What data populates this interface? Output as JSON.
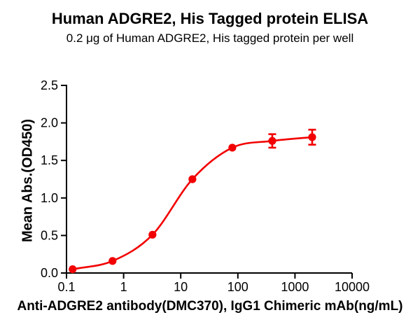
{
  "figure": {
    "title": "Human ADGRE2, His Tagged protein ELISA",
    "subtitle": "0.2 μg of Human ADGRE2, His tagged protein per well"
  },
  "colors": {
    "accent_red": "#f20000",
    "axis": "#000000",
    "text": "#000000",
    "background": "#ffffff"
  },
  "chart_data": {
    "type": "line",
    "title": "Human ADGRE2, His Tagged protein ELISA",
    "subtitle": "0.2 μg of Human ADGRE2, His tagged protein per well",
    "xlabel": "Anti-ADGRE2 antibody(DMC370), IgG1 Chimeric mAb(ng/mL)",
    "ylabel": "Mean Abs.(OD450)",
    "x_scale": "log10",
    "xlim": [
      0.1,
      10000
    ],
    "ylim": [
      0,
      2.5
    ],
    "x_ticks": [
      0.1,
      1,
      10,
      100,
      1000,
      10000
    ],
    "x_tick_labels": [
      "0.1",
      "1",
      "10",
      "100",
      "1000",
      "10000"
    ],
    "y_ticks": [
      0,
      0.5,
      1,
      1.5,
      2,
      2.5
    ],
    "y_tick_labels": [
      "0.0",
      "0.5",
      "1.0",
      "1.5",
      "2.0",
      "2.5"
    ],
    "grid": false,
    "legend": false,
    "curve_style": "sigmoidal-4PL-fit",
    "series": [
      {
        "x": [
          0.128,
          0.64,
          3.2,
          16,
          80,
          400,
          2000
        ],
        "y": [
          0.05,
          0.16,
          0.51,
          1.25,
          1.67,
          1.76,
          1.81
        ],
        "y_err": [
          0,
          0,
          0,
          0,
          0,
          0.09,
          0.1
        ],
        "color": "#f20000",
        "marker": "circle"
      }
    ]
  }
}
